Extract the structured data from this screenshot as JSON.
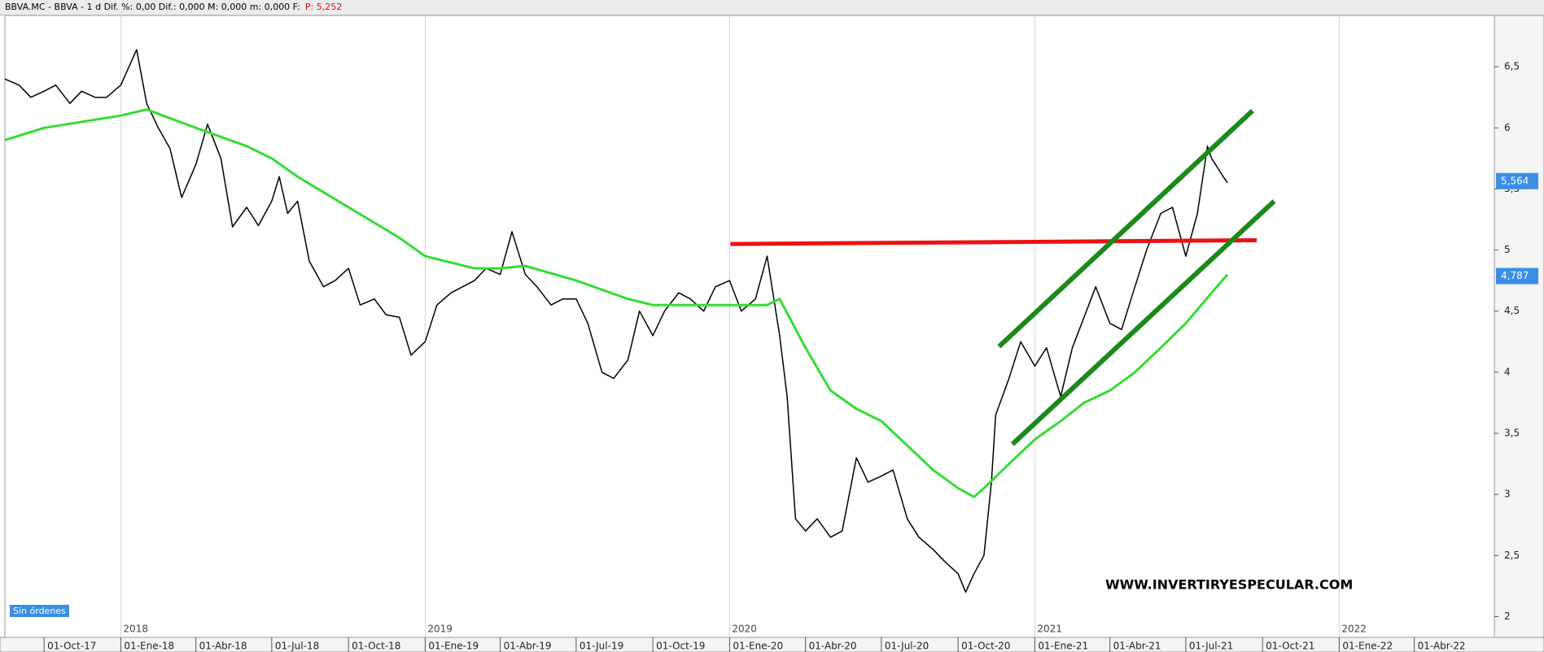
{
  "header": {
    "info": "BBVA.MC - BBVA -  1 d  Dif. %: 0,00  Dif.: 0,000  M: 0,000  m: 0,000  F:",
    "price": "P: 5,252"
  },
  "orders_label": "Sin órdenes",
  "chart_data": {
    "type": "line",
    "watermark": "WWW.INVERTIRYESPECULAR.COM",
    "xlim": [
      "15-Ago-17",
      "06-Jul-22"
    ],
    "ylim": [
      1.83,
      6.92
    ],
    "yticks": [
      {
        "value": 6.5,
        "label": "6,5"
      },
      {
        "value": 6,
        "label": "6"
      },
      {
        "value": 5.5,
        "label": "5,5"
      },
      {
        "value": 5,
        "label": "5"
      },
      {
        "value": 4.5,
        "label": "4,5"
      },
      {
        "value": 4,
        "label": "4"
      },
      {
        "value": 3.5,
        "label": "3,5"
      },
      {
        "value": 3,
        "label": "3"
      },
      {
        "value": 2.5,
        "label": "2,5"
      },
      {
        "value": 2,
        "label": "2"
      }
    ],
    "xticks": [
      "01-Oct-17",
      "01-Ene-18",
      "01-Abr-18",
      "01-Jul-18",
      "01-Oct-18",
      "01-Ene-19",
      "01-Abr-19",
      "01-Jul-19",
      "01-Oct-19",
      "01-Ene-20",
      "01-Abr-20",
      "01-Jul-20",
      "01-Oct-20",
      "01-Ene-21",
      "01-Abr-21",
      "01-Jul-21",
      "01-Oct-21",
      "01-Ene-22",
      "01-Abr-22"
    ],
    "year_ticks": [
      {
        "value": "01-Ene-18",
        "label": "2018"
      },
      {
        "value": "01-Ene-19",
        "label": "2019"
      },
      {
        "value": "01-Ene-20",
        "label": "2020"
      },
      {
        "value": "01-Ene-21",
        "label": "2021"
      },
      {
        "value": "01-Ene-22",
        "label": "2022"
      }
    ],
    "grid": true,
    "series": [
      {
        "color": "#000000",
        "width": 1.5,
        "x": [
          "15-Ago-17",
          "01-Sep-17",
          "15-Sep-17",
          "01-Oct-17",
          "15-Oct-17",
          "01-Nov-17",
          "15-Nov-17",
          "01-Dic-17",
          "15-Dic-17",
          "01-Ene-18",
          "20-Ene-18",
          "01-Feb-18",
          "15-Feb-18",
          "01-Mar-18",
          "15-Mar-18",
          "01-Abr-18",
          "15-Abr-18",
          "01-May-18",
          "15-May-18",
          "01-Jun-18",
          "15-Jun-18",
          "01-Jul-18",
          "10-Jul-18",
          "20-Jul-18",
          "01-Ago-18",
          "15-Ago-18",
          "01-Sep-18",
          "15-Sep-18",
          "01-Oct-18",
          "15-Oct-18",
          "01-Nov-18",
          "15-Nov-18",
          "01-Dic-18",
          "15-Dic-18",
          "01-Ene-19",
          "15-Ene-19",
          "01-Feb-19",
          "15-Feb-19",
          "01-Mar-19",
          "15-Mar-19",
          "01-Abr-19",
          "15-Abr-19",
          "01-May-19",
          "15-May-19",
          "01-Jun-19",
          "15-Jun-19",
          "01-Jul-19",
          "15-Jul-19",
          "01-Ago-19",
          "15-Ago-19",
          "01-Sep-19",
          "15-Sep-19",
          "01-Oct-19",
          "15-Oct-19",
          "01-Nov-19",
          "15-Nov-19",
          "01-Dic-19",
          "15-Dic-19",
          "01-Ene-20",
          "15-Ene-20",
          "01-Feb-20",
          "15-Feb-20",
          "01-Mar-20",
          "10-Mar-20",
          "20-Mar-20",
          "01-Abr-20",
          "15-Abr-20",
          "01-May-20",
          "15-May-20",
          "01-Jun-20",
          "15-Jun-20",
          "01-Jul-20",
          "15-Jul-20",
          "01-Ago-20",
          "15-Ago-20",
          "01-Sep-20",
          "15-Sep-20",
          "01-Oct-20",
          "10-Oct-20",
          "20-Oct-20",
          "01-Nov-20",
          "10-Nov-20",
          "15-Nov-20",
          "01-Dic-20",
          "15-Dic-20",
          "01-Ene-21",
          "15-Ene-21",
          "01-Feb-21",
          "15-Feb-21",
          "01-Mar-21",
          "15-Mar-21",
          "01-Abr-21",
          "15-Abr-21",
          "01-May-21",
          "15-May-21",
          "01-Jun-21",
          "15-Jun-21",
          "01-Jul-21",
          "15-Jul-21",
          "27-Jul-21",
          "01-Ago-21",
          "15-Ago-21",
          "20-Ago-21"
        ],
        "values": [
          6.4,
          6.35,
          6.25,
          6.3,
          6.35,
          6.2,
          6.3,
          6.25,
          6.25,
          6.35,
          6.64,
          6.2,
          6.0,
          5.83,
          5.43,
          5.7,
          6.03,
          5.75,
          5.19,
          5.35,
          5.2,
          5.4,
          5.6,
          5.3,
          5.4,
          4.91,
          4.7,
          4.75,
          4.85,
          4.55,
          4.6,
          4.47,
          4.45,
          4.14,
          4.25,
          4.55,
          4.65,
          4.7,
          4.75,
          4.85,
          4.8,
          5.15,
          4.8,
          4.7,
          4.55,
          4.6,
          4.6,
          4.4,
          4.0,
          3.95,
          4.1,
          4.5,
          4.3,
          4.5,
          4.65,
          4.6,
          4.5,
          4.7,
          4.75,
          4.5,
          4.6,
          4.95,
          4.3,
          3.8,
          2.8,
          2.7,
          2.8,
          2.65,
          2.7,
          3.3,
          3.1,
          3.15,
          3.2,
          2.8,
          2.65,
          2.55,
          2.45,
          2.35,
          2.2,
          2.35,
          2.5,
          3.1,
          3.65,
          3.95,
          4.25,
          4.05,
          4.2,
          3.8,
          4.2,
          4.45,
          4.7,
          4.4,
          4.35,
          4.7,
          5.0,
          5.3,
          5.35,
          4.95,
          5.3,
          5.85,
          5.75,
          5.6,
          5.55
        ]
      },
      {
        "color": "#33dd33",
        "width": 3,
        "x": [
          "15-Ago-17",
          "01-Oct-17",
          "01-Ene-18",
          "01-Feb-18",
          "01-Abr-18",
          "01-Jun-18",
          "01-Jul-18",
          "01-Ago-18",
          "01-Oct-18",
          "01-Dic-18",
          "01-Ene-19",
          "01-Mar-19",
          "01-Abr-19",
          "01-May-19",
          "01-Jul-19",
          "01-Sep-19",
          "01-Oct-19",
          "01-Dic-19",
          "01-Ene-20",
          "15-Feb-20",
          "01-Mar-20",
          "01-Abr-20",
          "01-May-20",
          "01-Jun-20",
          "01-Jul-20",
          "01-Ago-20",
          "01-Sep-20",
          "01-Oct-20",
          "20-Oct-20",
          "01-Nov-20",
          "01-Dic-20",
          "01-Ene-21",
          "01-Feb-21",
          "01-Mar-21",
          "01-Abr-21",
          "01-May-21",
          "01-Jun-21",
          "01-Jul-21",
          "01-Ago-21",
          "20-Ago-21"
        ],
        "values": [
          5.9,
          6.0,
          6.1,
          6.15,
          6.0,
          5.85,
          5.75,
          5.6,
          5.35,
          5.1,
          4.95,
          4.85,
          4.85,
          4.87,
          4.75,
          4.6,
          4.55,
          4.55,
          4.55,
          4.55,
          4.6,
          4.2,
          3.85,
          3.7,
          3.6,
          3.4,
          3.2,
          3.05,
          2.98,
          3.05,
          3.25,
          3.45,
          3.6,
          3.75,
          3.85,
          4.0,
          4.2,
          4.4,
          4.65,
          4.8
        ]
      },
      {
        "color": "#ee1111",
        "width": 5,
        "x": [
          "02-Ene-20",
          "24-Sep-21"
        ],
        "values": [
          5.05,
          5.08
        ]
      },
      {
        "color": "#1a8a1a",
        "width": 6,
        "x": [
          "19-Nov-20",
          "19-Sep-21"
        ],
        "values": [
          4.21,
          6.14
        ]
      },
      {
        "color": "#1a8a1a",
        "width": 6,
        "x": [
          "05-Dic-20",
          "15-Oct-21"
        ],
        "values": [
          3.41,
          5.4
        ]
      }
    ],
    "badges": [
      {
        "value": 5.564,
        "label": "5,564",
        "color": "#3a8ee6"
      },
      {
        "value": 4.787,
        "label": "4,787",
        "color": "#3a8ee6"
      }
    ]
  }
}
